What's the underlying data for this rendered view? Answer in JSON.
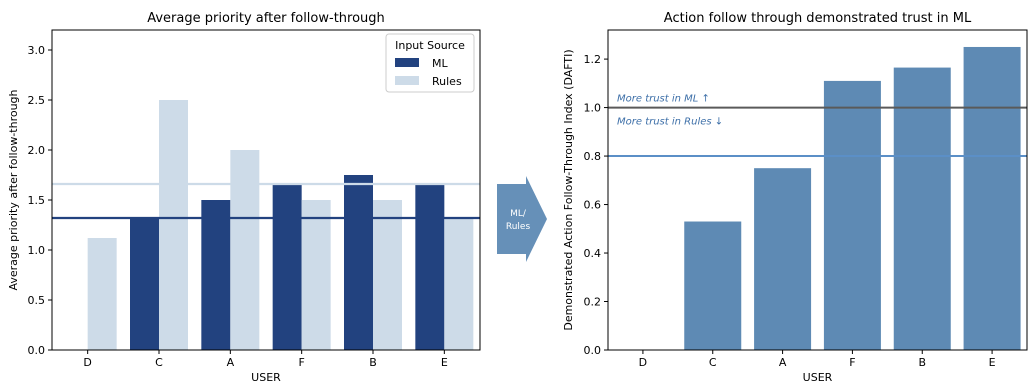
{
  "colors": {
    "ml": "#22427f",
    "rules": "#cddbe8",
    "dafti_bar": "#5e8ab4",
    "ref_line_dark": "#5a5a5a",
    "ref_line_blue": "#5b8fc7",
    "annotation": "#3d6fa8",
    "arrow_fill": "#6690b8",
    "axis": "#000000"
  },
  "chart_data": [
    {
      "type": "bar",
      "title": "Average priority after follow-through",
      "xlabel": "USER",
      "ylabel": "Average priority after follow-through",
      "categories": [
        "D",
        "C",
        "A",
        "F",
        "B",
        "E"
      ],
      "ylim": [
        0,
        3.2
      ],
      "yticks": [
        "0.0",
        "0.5",
        "1.0",
        "1.5",
        "2.0",
        "2.5",
        "3.0"
      ],
      "series": [
        {
          "name": "ML",
          "values": [
            null,
            1.33,
            1.5,
            1.65,
            1.75,
            1.65
          ]
        },
        {
          "name": "Rules",
          "values": [
            1.12,
            2.5,
            2.0,
            1.5,
            1.5,
            1.33
          ]
        }
      ],
      "reference_lines": [
        {
          "series": "Rules",
          "value": 1.66
        },
        {
          "series": "ML",
          "value": 1.32
        }
      ],
      "legend": {
        "title": "Input Source",
        "placement": "top-right"
      },
      "grid": false
    },
    {
      "type": "bar",
      "title": "Action follow through demonstrated trust in ML",
      "xlabel": "USER",
      "ylabel": "Demonstrated Action Follow-Through Index (DAFTI)",
      "categories": [
        "D",
        "C",
        "A",
        "F",
        "B",
        "E"
      ],
      "ylim": [
        0,
        1.32
      ],
      "yticks": [
        "0.0",
        "0.2",
        "0.4",
        "0.6",
        "0.8",
        "1.0",
        "1.2"
      ],
      "values": [
        0,
        0.53,
        0.75,
        1.11,
        1.165,
        1.25
      ],
      "reference_lines": [
        {
          "value": 1.0
        },
        {
          "value": 0.8
        }
      ],
      "annotations": [
        "More trust in ML ↑",
        "More trust in Rules ↓"
      ],
      "grid": false
    }
  ],
  "arrow": {
    "label_line1": "ML/",
    "label_line2": "Rules"
  }
}
